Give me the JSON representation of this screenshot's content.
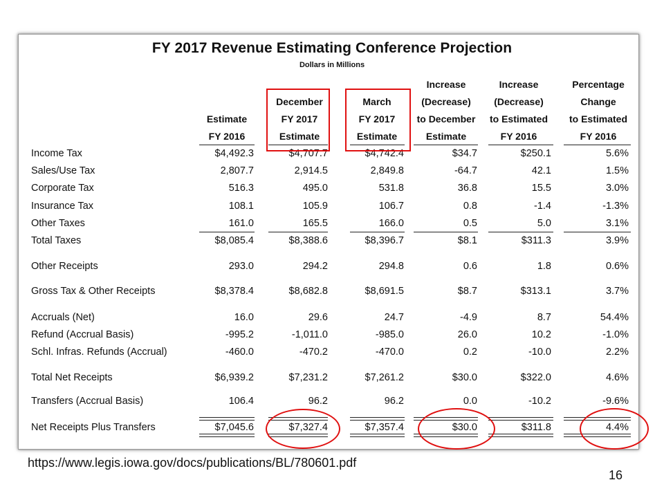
{
  "title": "FY 2017 Revenue Estimating Conference Projection",
  "subtitle": "Dollars in Millions",
  "columns": [
    [
      "Estimate",
      "FY 2016"
    ],
    [
      "December",
      "FY 2017",
      "Estimate"
    ],
    [
      "March",
      "FY 2017",
      "Estimate"
    ],
    [
      "Increase",
      "(Decrease)",
      "to December",
      "Estimate"
    ],
    [
      "Increase",
      "(Decrease)",
      "to Estimated",
      "FY 2016"
    ],
    [
      "Percentage",
      "Change",
      "to Estimated",
      "FY 2016"
    ]
  ],
  "rows": [
    {
      "label": "Income Tax",
      "values": [
        "$4,492.3",
        "$4,707.7",
        "$4,742.4",
        "$34.7",
        "$250.1",
        "5.6%"
      ]
    },
    {
      "label": "Sales/Use Tax",
      "values": [
        "2,807.7",
        "2,914.5",
        "2,849.8",
        "-64.7",
        "42.1",
        "1.5%"
      ]
    },
    {
      "label": "Corporate Tax",
      "values": [
        "516.3",
        "495.0",
        "531.8",
        "36.8",
        "15.5",
        "3.0%"
      ]
    },
    {
      "label": "Insurance Tax",
      "values": [
        "108.1",
        "105.9",
        "106.7",
        "0.8",
        "-1.4",
        "-1.3%"
      ]
    },
    {
      "label": "Other Taxes",
      "values": [
        "161.0",
        "165.5",
        "166.0",
        "0.5",
        "5.0",
        "3.1%"
      ]
    },
    {
      "label": "Total Taxes",
      "values": [
        "$8,085.4",
        "$8,388.6",
        "$8,396.7",
        "$8.1",
        "$311.3",
        "3.9%"
      ]
    },
    {
      "label": "Other Receipts",
      "values": [
        "293.0",
        "294.2",
        "294.8",
        "0.6",
        "1.8",
        "0.6%"
      ]
    },
    {
      "label": "Gross Tax & Other Receipts",
      "values": [
        "$8,378.4",
        "$8,682.8",
        "$8,691.5",
        "$8.7",
        "$313.1",
        "3.7%"
      ]
    },
    {
      "label": "Accruals (Net)",
      "values": [
        "16.0",
        "29.6",
        "24.7",
        "-4.9",
        "8.7",
        "54.4%"
      ]
    },
    {
      "label": "Refund (Accrual Basis)",
      "values": [
        "-995.2",
        "-1,011.0",
        "-985.0",
        "26.0",
        "10.2",
        "-1.0%"
      ]
    },
    {
      "label": "Schl. Infras. Refunds (Accrual)",
      "values": [
        "-460.0",
        "-470.2",
        "-470.0",
        "0.2",
        "-10.0",
        "2.2%"
      ]
    },
    {
      "label": "Total Net Receipts",
      "values": [
        "$6,939.2",
        "$7,231.2",
        "$7,261.2",
        "$30.0",
        "$322.0",
        "4.6%"
      ]
    },
    {
      "label": "Transfers (Accrual Basis)",
      "values": [
        "106.4",
        "96.2",
        "96.2",
        "0.0",
        "-10.2",
        "-9.6%"
      ]
    },
    {
      "label": "Net Receipts Plus Transfers",
      "values": [
        "$7,045.6",
        "$7,327.4",
        "$7,357.4",
        "$30.0",
        "$311.8",
        "4.4%"
      ]
    }
  ],
  "source_url": "https://www.legis.iowa.gov/docs/publications/BL/780601.pdf",
  "page_number": "16",
  "highlight_color": "#e01010"
}
